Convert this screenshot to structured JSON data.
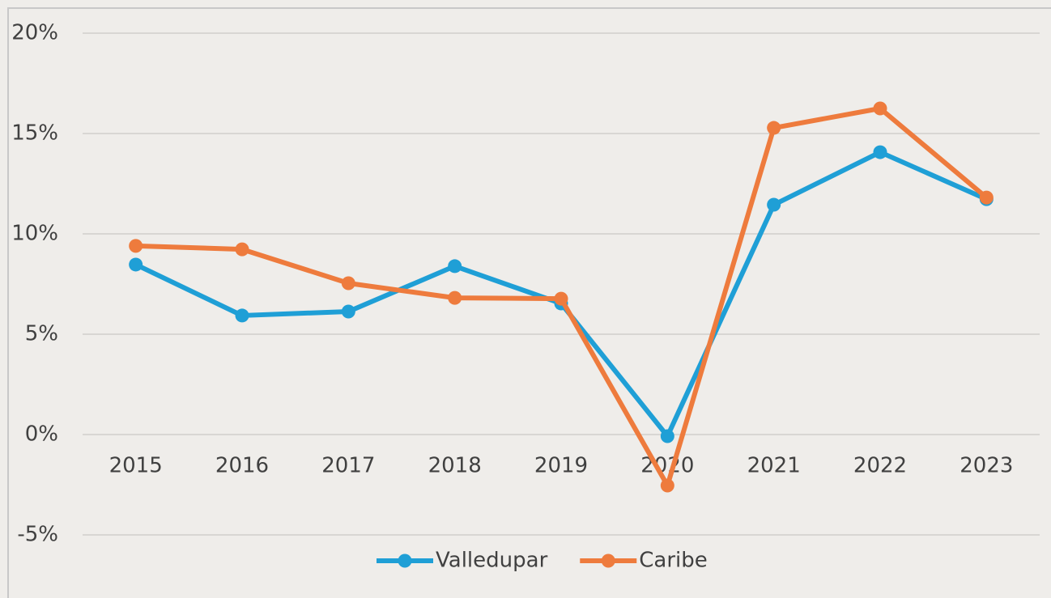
{
  "chart_data": {
    "type": "line",
    "categories": [
      "2015",
      "2016",
      "2017",
      "2018",
      "2019",
      "2020",
      "2021",
      "2022",
      "2023"
    ],
    "series": [
      {
        "name": "Valledupar",
        "color": "#1f9fd6",
        "values": [
          8.47,
          5.93,
          6.13,
          8.39,
          6.53,
          -0.08,
          11.45,
          14.07,
          11.73
        ]
      },
      {
        "name": "Caribe",
        "color": "#ee7b3d",
        "values": [
          9.4,
          9.23,
          7.54,
          6.81,
          6.77,
          -2.54,
          15.28,
          16.25,
          11.81
        ]
      }
    ],
    "ylim": [
      -5,
      20
    ],
    "yticks": [
      {
        "value": -5,
        "label": "-5%"
      },
      {
        "value": 0,
        "label": "0%"
      },
      {
        "value": 5,
        "label": "5%"
      },
      {
        "value": 10,
        "label": "10%"
      },
      {
        "value": 15,
        "label": "15%"
      },
      {
        "value": 20,
        "label": "20%"
      }
    ],
    "grid": true,
    "legend": "bottom"
  }
}
